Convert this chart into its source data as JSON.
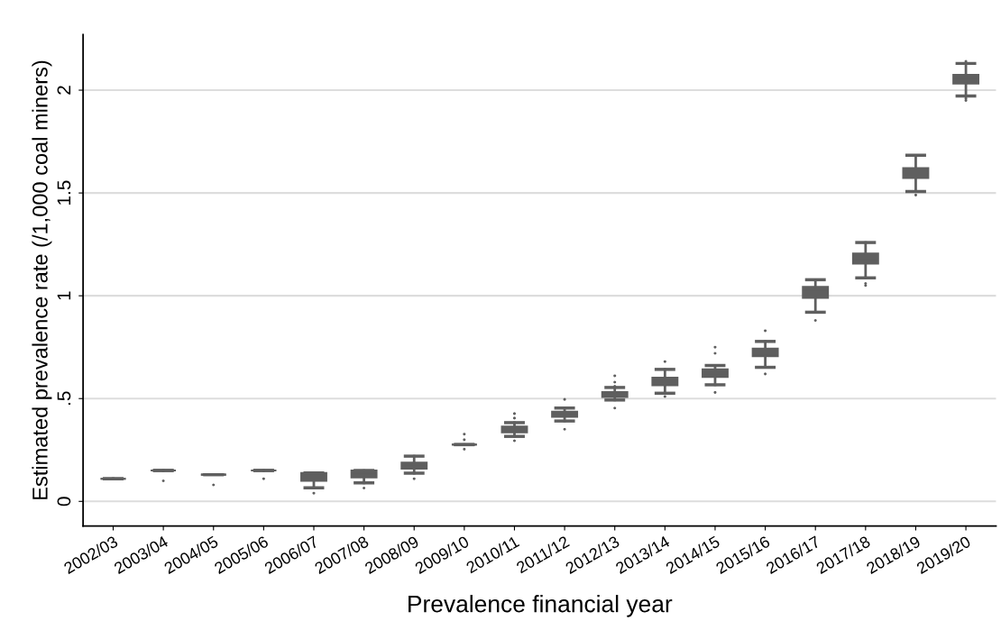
{
  "chart_data": {
    "type": "box",
    "xlabel": "Prevalence financial year",
    "ylabel": "Estimated prevalence rate (/1,000 coal miners)",
    "categories": [
      "2002/03",
      "2003/04",
      "2004/05",
      "2005/06",
      "2006/07",
      "2007/08",
      "2008/09",
      "2009/10",
      "2010/11",
      "2011/12",
      "2012/13",
      "2013/14",
      "2014/15",
      "2015/16",
      "2016/17",
      "2017/18",
      "2018/19",
      "2019/20"
    ],
    "color": "#5f5f5f",
    "boxes": [
      {
        "low": 0.11,
        "q1": 0.11,
        "median": 0.11,
        "q3": 0.11,
        "high": 0.11
      },
      {
        "low": 0.15,
        "q1": 0.15,
        "median": 0.15,
        "q3": 0.15,
        "high": 0.15,
        "outliers": [
          0.1
        ]
      },
      {
        "low": 0.13,
        "q1": 0.13,
        "median": 0.13,
        "q3": 0.13,
        "high": 0.13,
        "outliers": [
          0.08
        ]
      },
      {
        "low": 0.15,
        "q1": 0.15,
        "median": 0.15,
        "q3": 0.15,
        "high": 0.15,
        "outliers": [
          0.11
        ]
      },
      {
        "low": 0.066,
        "q1": 0.1,
        "median": 0.12,
        "q3": 0.138,
        "high": 0.138,
        "outliers": [
          0.04
        ]
      },
      {
        "low": 0.09,
        "q1": 0.116,
        "median": 0.13,
        "q3": 0.15,
        "high": 0.15,
        "outliers": [
          0.065
        ]
      },
      {
        "low": 0.137,
        "q1": 0.159,
        "median": 0.17,
        "q3": 0.188,
        "high": 0.22,
        "outliers": [
          0.11
        ]
      },
      {
        "low": 0.276,
        "q1": 0.276,
        "median": 0.276,
        "q3": 0.276,
        "high": 0.276,
        "outliers": [
          0.327,
          0.3,
          0.254
        ]
      },
      {
        "low": 0.316,
        "q1": 0.336,
        "median": 0.35,
        "q3": 0.364,
        "high": 0.383,
        "outliers": [
          0.427,
          0.405,
          0.295
        ]
      },
      {
        "low": 0.391,
        "q1": 0.411,
        "median": 0.42,
        "q3": 0.436,
        "high": 0.454,
        "outliers": [
          0.496,
          0.351
        ]
      },
      {
        "low": 0.493,
        "q1": 0.508,
        "median": 0.52,
        "q3": 0.532,
        "high": 0.554,
        "outliers": [
          0.611,
          0.58,
          0.56,
          0.454
        ]
      },
      {
        "low": 0.526,
        "q1": 0.565,
        "median": 0.58,
        "q3": 0.602,
        "high": 0.642,
        "outliers": [
          0.68,
          0.51
        ]
      },
      {
        "low": 0.567,
        "q1": 0.605,
        "median": 0.62,
        "q3": 0.642,
        "high": 0.661,
        "outliers": [
          0.75,
          0.72,
          0.53
        ]
      },
      {
        "low": 0.652,
        "q1": 0.706,
        "median": 0.72,
        "q3": 0.743,
        "high": 0.778,
        "outliers": [
          0.83,
          0.62
        ]
      },
      {
        "low": 0.92,
        "q1": 0.99,
        "median": 1.02,
        "q3": 1.043,
        "high": 1.078,
        "outliers": [
          0.88
        ]
      },
      {
        "low": 1.087,
        "q1": 1.156,
        "median": 1.18,
        "q3": 1.206,
        "high": 1.259,
        "outliers": [
          1.06,
          1.05
        ]
      },
      {
        "low": 1.507,
        "q1": 1.573,
        "median": 1.6,
        "q3": 1.621,
        "high": 1.683,
        "outliers": [
          1.49
        ]
      },
      {
        "low": 1.972,
        "q1": 2.032,
        "median": 2.05,
        "q3": 2.075,
        "high": 2.13,
        "outliers": [
          2.14,
          1.96,
          1.95
        ]
      }
    ],
    "ylim": [
      -0.12,
      2.27
    ],
    "yticks": [
      0,
      {
        "value": 0.5,
        "label": ".5"
      },
      1,
      1.5,
      2
    ],
    "grid": "y"
  }
}
